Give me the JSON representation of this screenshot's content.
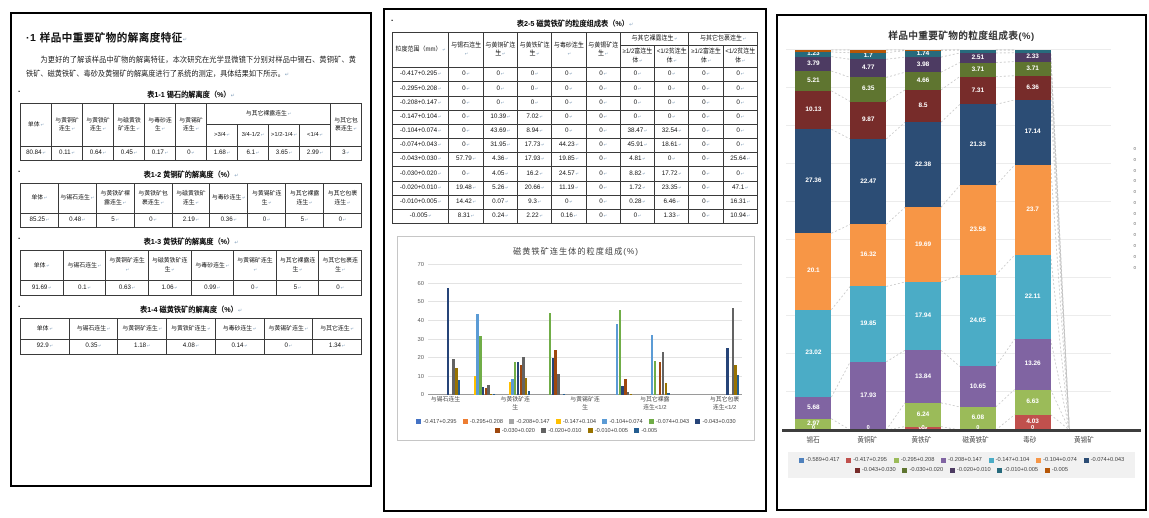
{
  "left_panel": {
    "heading": "·1 样品中重要矿物的解离度特征",
    "paragraph": "为更好的了解该样品中矿物的解离特征，本次研究在光学显微镜下分别对样品中锡石、黄铜矿、黄铁矿、磁黄铁矿、毒砂及黄锡矿的解离度进行了系统的测定，具体结果如下所示。",
    "tables": [
      {
        "caption": "表1-1 锡石的解离度（%）",
        "header": [
          [
            {
              "t": "单体",
              "rs": 2
            },
            {
              "t": "与黄铜矿连生",
              "rs": 2
            },
            {
              "t": "与黄铁矿连生",
              "rs": 2
            },
            {
              "t": "与磁黄铁矿连生",
              "rs": 2
            },
            {
              "t": "与毒砂连生",
              "rs": 2
            },
            {
              "t": "与黄锡矿连生",
              "rs": 2
            },
            {
              "t": "与其它裸露连生",
              "cs": 4
            },
            {
              "t": "与其它包裹连生",
              "rs": 2
            }
          ],
          [
            {
              "t": ">3/4"
            },
            {
              "t": "3/4-1/2"
            },
            {
              "t": ">1/2-1/4"
            },
            {
              "t": "<1/4"
            }
          ]
        ],
        "rows": [
          [
            "80.84",
            "0.11",
            "0.64",
            "0.45",
            "0.17",
            "0",
            "1.68",
            "6.1",
            "3.65",
            "2.99",
            "3"
          ]
        ]
      },
      {
        "caption": "表1-2 黄铜矿的解离度（%）",
        "header": [
          [
            {
              "t": "单体"
            },
            {
              "t": "与锡石连生"
            },
            {
              "t": "与黄铁矿裸露连生"
            },
            {
              "t": "与黄铁矿包裹连生"
            },
            {
              "t": "与磁黄铁矿连生"
            },
            {
              "t": "与毒砂连生"
            },
            {
              "t": "与黄锡矿连生"
            },
            {
              "t": "与其它裸露连生"
            },
            {
              "t": "与其它包裹连生"
            }
          ]
        ],
        "rows": [
          [
            "85.25",
            "0.48",
            "5",
            "0",
            "2.19",
            "0.36",
            "0",
            "5",
            "0"
          ]
        ]
      },
      {
        "caption": "表1-3 黄铁矿的解离度（%）",
        "header": [
          [
            {
              "t": "单体"
            },
            {
              "t": "与锡石连生"
            },
            {
              "t": "与黄铜矿连生"
            },
            {
              "t": "与磁黄铁矿连生"
            },
            {
              "t": "与毒砂连生"
            },
            {
              "t": "与黄锡矿连生"
            },
            {
              "t": "与其它裸露连生"
            },
            {
              "t": "与其它包裹连生"
            }
          ]
        ],
        "rows": [
          [
            "91.69",
            "0.1",
            "0.63",
            "1.06",
            "0.99",
            "0",
            "5",
            "0"
          ]
        ]
      },
      {
        "caption": "表1-4 磁黄铁矿的解离度（%）",
        "header": [
          [
            {
              "t": "单体"
            },
            {
              "t": "与锡石连生"
            },
            {
              "t": "与黄铜矿连生"
            },
            {
              "t": "与黄铁矿连生"
            },
            {
              "t": "与毒砂连生"
            },
            {
              "t": "与黄锡矿连生"
            },
            {
              "t": "与其它连生"
            }
          ]
        ],
        "rows": [
          [
            "92.9",
            "0.35",
            "1.18",
            "4.08",
            "0.14",
            "0",
            "1.34"
          ]
        ]
      }
    ]
  },
  "middle_panel": {
    "table": {
      "caption": "表2-5 磁黄铁矿的粒度组成表（%）",
      "header": [
        [
          {
            "t": "粒度范围（mm）",
            "rs": 2
          },
          {
            "t": "与锡石连生",
            "rs": 2
          },
          {
            "t": "与黄铜矿连生",
            "rs": 2
          },
          {
            "t": "与黄铁矿连生",
            "rs": 2
          },
          {
            "t": "与毒砂连生",
            "rs": 2
          },
          {
            "t": "与黄锡矿连生",
            "rs": 2
          },
          {
            "t": "与其它裸露连生",
            "cs": 2
          },
          {
            "t": "与其它包裹连生",
            "cs": 2
          }
        ],
        [
          {
            "t": "≥1/2富连生体"
          },
          {
            "t": "<1/2贫连生体"
          },
          {
            "t": "≥1/2富连生体"
          },
          {
            "t": "<1/2贫连生体"
          }
        ]
      ],
      "rows": [
        [
          "-0.417+0.295",
          "0",
          "0",
          "0",
          "0",
          "0",
          "0",
          "0",
          "0",
          "0"
        ],
        [
          "-0.295+0.208",
          "0",
          "0",
          "0",
          "0",
          "0",
          "0",
          "0",
          "0",
          "0"
        ],
        [
          "-0.208+0.147",
          "0",
          "0",
          "0",
          "0",
          "0",
          "0",
          "0",
          "0",
          "0"
        ],
        [
          "-0.147+0.104",
          "0",
          "10.39",
          "7.02",
          "0",
          "0",
          "0",
          "0",
          "0",
          "0"
        ],
        [
          "-0.104+0.074",
          "0",
          "43.69",
          "8.94",
          "0",
          "0",
          "38.47",
          "32.54",
          "0",
          "0"
        ],
        [
          "-0.074+0.043",
          "0",
          "31.95",
          "17.73",
          "44.23",
          "0",
          "45.91",
          "18.61",
          "0",
          "0"
        ],
        [
          "-0.043+0.030",
          "57.79",
          "4.36",
          "17.93",
          "19.85",
          "0",
          "4.81",
          "0",
          "0",
          "25.64"
        ],
        [
          "-0.030+0.020",
          "0",
          "4.05",
          "16.2",
          "24.57",
          "0",
          "8.82",
          "17.72",
          "0",
          "0"
        ],
        [
          "-0.020+0.010",
          "19.48",
          "5.26",
          "20.66",
          "11.19",
          "0",
          "1.72",
          "23.35",
          "0",
          "47.1"
        ],
        [
          "-0.010+0.005",
          "14.42",
          "0.07",
          "9.3",
          "0",
          "0",
          "0.28",
          "6.46",
          "0",
          "16.31"
        ],
        [
          "-0.005",
          "8.31",
          "0.24",
          "2.22",
          "0.16",
          "0",
          "0",
          "1.33",
          "0",
          "10.94"
        ]
      ]
    }
  },
  "chart_data": [
    {
      "type": "bar",
      "title": "磁黄铁矿连生体的粒度组成(%)",
      "categories": [
        "与锡石连生",
        "与黄铜矿连生",
        "与黄铁矿连生",
        "与毒砂连生",
        "与黄锡矿连生",
        "与其它裸露连生≥1/2",
        "与其它裸露连生<1/2",
        "与其它包裹连生≥1/2",
        "与其它包裹连生<1/2"
      ],
      "axis_labels": [
        "与锡石连生",
        "",
        "与黄铁矿连生",
        "",
        "与黄锡矿连生",
        "",
        "与其它裸露 连生<1/2",
        "",
        "与其它包裹 连生<1/2"
      ],
      "ylim": [
        0,
        70
      ],
      "yticks": [
        0,
        10,
        20,
        30,
        40,
        50,
        60,
        70
      ],
      "grid": true,
      "legend_position": "bottom",
      "colors": [
        "#4472c4",
        "#ed7d31",
        "#a5a5a5",
        "#ffc000",
        "#5b9bd5",
        "#70ad47",
        "#264478",
        "#9e480e",
        "#636363",
        "#997300",
        "#255e91"
      ],
      "series": [
        {
          "name": "-0.417+0.295",
          "values": [
            0,
            0,
            0,
            0,
            0,
            0,
            0,
            0,
            0
          ]
        },
        {
          "name": "-0.295+0.208",
          "values": [
            0,
            0,
            0,
            0,
            0,
            0,
            0,
            0,
            0
          ]
        },
        {
          "name": "-0.208+0.147",
          "values": [
            0,
            0,
            0,
            0,
            0,
            0,
            0,
            0,
            0
          ]
        },
        {
          "name": "-0.147+0.104",
          "values": [
            0,
            10.39,
            7.02,
            0,
            0,
            0,
            0,
            0,
            0
          ]
        },
        {
          "name": "-0.104+0.074",
          "values": [
            0,
            43.69,
            8.94,
            0,
            0,
            38.47,
            32.54,
            0,
            0
          ]
        },
        {
          "name": "-0.074+0.043",
          "values": [
            0,
            31.95,
            17.73,
            44.23,
            0,
            45.91,
            18.61,
            0,
            0
          ]
        },
        {
          "name": "-0.043+0.030",
          "values": [
            57.79,
            4.36,
            17.93,
            19.85,
            0,
            4.81,
            0,
            0,
            25.64
          ]
        },
        {
          "name": "-0.030+0.020",
          "values": [
            0,
            4.05,
            16.2,
            24.57,
            0,
            8.82,
            17.72,
            0,
            0
          ]
        },
        {
          "name": "-0.020+0.010",
          "values": [
            19.48,
            5.26,
            20.66,
            11.19,
            0,
            1.72,
            23.35,
            0,
            47.1
          ]
        },
        {
          "name": "-0.010+0.005",
          "values": [
            14.42,
            0.07,
            9.3,
            0,
            0,
            0.28,
            6.46,
            0,
            16.31
          ]
        },
        {
          "name": "-0.005",
          "values": [
            8.31,
            0.24,
            2.22,
            0.16,
            0,
            0,
            1.33,
            0,
            10.94
          ]
        }
      ]
    },
    {
      "type": "bar",
      "stacked": true,
      "title": "样品中重要矿物的粒度组成表(%)",
      "categories": [
        "锡石",
        "黄铜矿",
        "黄铁矿",
        "磁黄铁矿",
        "毒砂",
        "黄锡矿"
      ],
      "ylim": [
        0,
        100
      ],
      "grid": true,
      "legend_position": "bottom",
      "series_lines": true,
      "zero_label_column": [
        "0",
        "0",
        "0",
        "0",
        "0",
        "0",
        "0",
        "0",
        "0",
        "0",
        "0",
        "0"
      ],
      "colors": [
        "#4f81bd",
        "#c0504d",
        "#9bbb59",
        "#8064a2",
        "#4bacc6",
        "#f79646",
        "#2c4d75",
        "#772c2a",
        "#5f7530",
        "#4d3b62",
        "#276a7c",
        "#b65708"
      ],
      "series": [
        {
          "name": "-0.589+0.417",
          "values": [
            0,
            0,
            0,
            0,
            0,
            0
          ]
        },
        {
          "name": "-0.417+0.295",
          "values": [
            0,
            0,
            0.9,
            0,
            4.03,
            0
          ]
        },
        {
          "name": "-0.295+0.208",
          "values": [
            2.97,
            0,
            6.24,
            6.08,
            6.63,
            0
          ]
        },
        {
          "name": "-0.208+0.147",
          "values": [
            5.68,
            17.93,
            13.84,
            10.65,
            13.26,
            0
          ]
        },
        {
          "name": "-0.147+0.104",
          "values": [
            23.02,
            19.85,
            17.94,
            24.05,
            22.11,
            0
          ]
        },
        {
          "name": "-0.104+0.074",
          "values": [
            20.1,
            16.32,
            19.69,
            23.58,
            23.7,
            0
          ]
        },
        {
          "name": "-0.074+0.043",
          "values": [
            27.36,
            22.47,
            22.38,
            21.33,
            17.14,
            0
          ]
        },
        {
          "name": "-0.043+0.030",
          "values": [
            10.13,
            9.87,
            8.5,
            7.31,
            6.36,
            0
          ]
        },
        {
          "name": "-0.030+0.020",
          "values": [
            5.21,
            6.35,
            4.66,
            3.71,
            3.71,
            0
          ]
        },
        {
          "name": "-0.020+0.010",
          "values": [
            3.79,
            4.77,
            3.98,
            2.51,
            2.33,
            0
          ]
        },
        {
          "name": "-0.010+0.005",
          "values": [
            1.23,
            1.7,
            1.74,
            0.78,
            0.73,
            0
          ]
        },
        {
          "name": "-0.005",
          "values": [
            0.51,
            0.74,
            0.13,
            0,
            0,
            0
          ]
        }
      ],
      "baseline_zero_labels": [
        "0",
        "0",
        "0",
        "0",
        "0",
        ""
      ]
    }
  ]
}
